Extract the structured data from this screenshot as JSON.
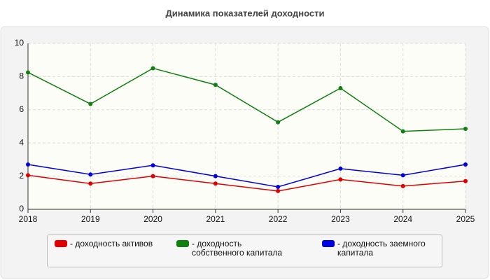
{
  "chart_data": {
    "type": "line",
    "title": "Динамика показателей доходности",
    "x": [
      2018,
      2019,
      2020,
      2021,
      2022,
      2023,
      2024,
      2025
    ],
    "xlim": [
      2018,
      2025
    ],
    "xticks": [
      2018,
      2019,
      2020,
      2021,
      2022,
      2023,
      2024,
      2025
    ],
    "ylim": [
      0,
      10
    ],
    "yticks": [
      0,
      2,
      4,
      6,
      8,
      10
    ],
    "grid": true,
    "series": [
      {
        "name": "- доходность активов",
        "color": "#e00000",
        "values": [
          2.05,
          1.55,
          2.0,
          1.55,
          1.1,
          1.8,
          1.4,
          1.7
        ]
      },
      {
        "name": "- доходность собственного капитала",
        "color": "#108010",
        "values": [
          8.25,
          6.35,
          8.5,
          7.5,
          5.25,
          7.3,
          4.7,
          4.85
        ]
      },
      {
        "name": "- доходность заемного капитала",
        "color": "#0000e0",
        "values": [
          2.7,
          2.1,
          2.65,
          2.0,
          1.35,
          2.45,
          2.05,
          2.7
        ]
      }
    ]
  }
}
